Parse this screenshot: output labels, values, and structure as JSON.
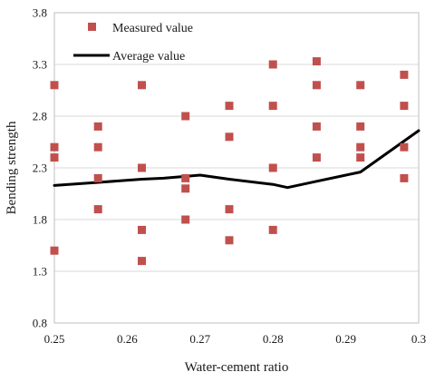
{
  "chart_data": {
    "type": "scatter",
    "title": "",
    "xlabel": "Water-cement ratio",
    "ylabel": "Bending strength",
    "xlim": [
      0.25,
      0.3
    ],
    "ylim": [
      0.8,
      3.8
    ],
    "x_ticks": [
      "0.25",
      "0.26",
      "0.27",
      "0.28",
      "0.29",
      "0.3"
    ],
    "y_ticks": [
      "0.8",
      "1.3",
      "1.8",
      "2.3",
      "2.8",
      "3.3",
      "3.8"
    ],
    "grid": "horizontal",
    "legend": "top-left",
    "series": [
      {
        "name": "Measured value",
        "kind": "scatter",
        "marker": "square",
        "color": "#c0504d",
        "points": [
          [
            0.25,
            3.1
          ],
          [
            0.25,
            2.5
          ],
          [
            0.25,
            2.4
          ],
          [
            0.25,
            1.5
          ],
          [
            0.256,
            2.7
          ],
          [
            0.256,
            2.5
          ],
          [
            0.256,
            2.2
          ],
          [
            0.256,
            1.9
          ],
          [
            0.262,
            3.1
          ],
          [
            0.262,
            2.3
          ],
          [
            0.262,
            1.7
          ],
          [
            0.262,
            1.4
          ],
          [
            0.268,
            2.8
          ],
          [
            0.268,
            2.2
          ],
          [
            0.268,
            2.1
          ],
          [
            0.268,
            1.8
          ],
          [
            0.274,
            2.9
          ],
          [
            0.274,
            2.6
          ],
          [
            0.274,
            1.9
          ],
          [
            0.274,
            1.6
          ],
          [
            0.28,
            3.3
          ],
          [
            0.28,
            2.9
          ],
          [
            0.28,
            2.3
          ],
          [
            0.28,
            1.7
          ],
          [
            0.286,
            3.33
          ],
          [
            0.286,
            3.1
          ],
          [
            0.286,
            2.7
          ],
          [
            0.286,
            2.4
          ],
          [
            0.292,
            3.1
          ],
          [
            0.292,
            2.7
          ],
          [
            0.292,
            2.5
          ],
          [
            0.292,
            2.4
          ],
          [
            0.298,
            3.2
          ],
          [
            0.298,
            2.9
          ],
          [
            0.298,
            2.5
          ],
          [
            0.298,
            2.2
          ]
        ]
      },
      {
        "name": "Average value",
        "kind": "line",
        "color": "#000000",
        "points": [
          [
            0.25,
            2.13
          ],
          [
            0.256,
            2.16
          ],
          [
            0.262,
            2.19
          ],
          [
            0.265,
            2.2
          ],
          [
            0.27,
            2.23
          ],
          [
            0.274,
            2.19
          ],
          [
            0.28,
            2.14
          ],
          [
            0.282,
            2.11
          ],
          [
            0.286,
            2.17
          ],
          [
            0.292,
            2.26
          ],
          [
            0.3,
            2.66
          ]
        ]
      }
    ]
  }
}
